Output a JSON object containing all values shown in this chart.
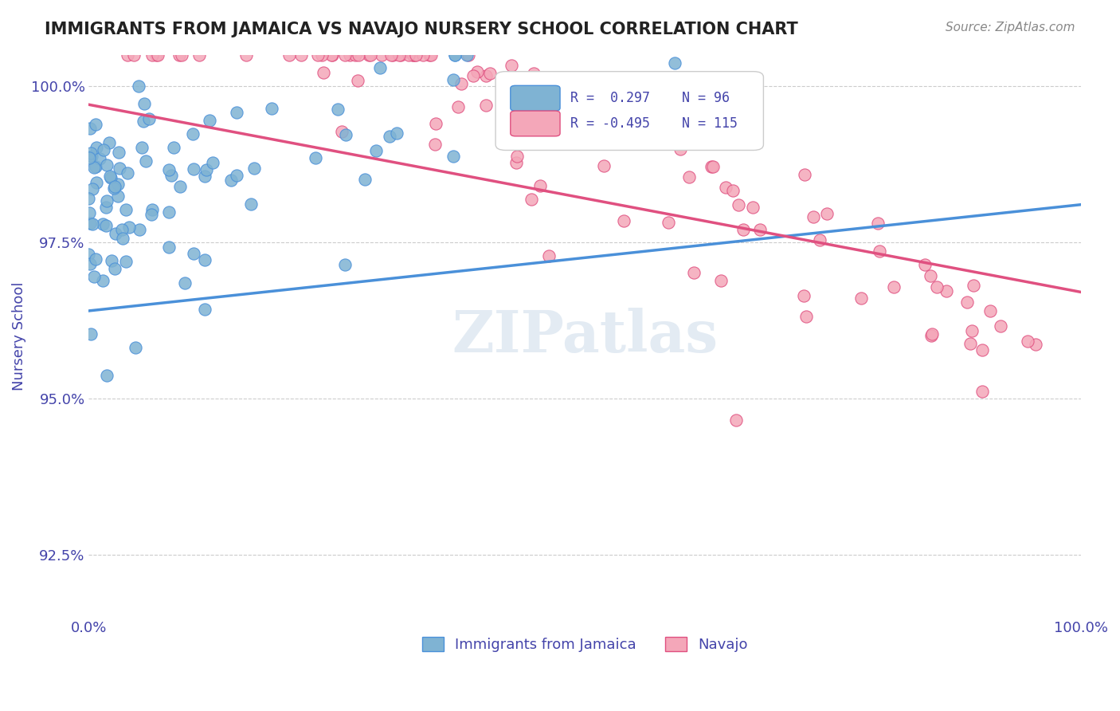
{
  "title": "IMMIGRANTS FROM JAMAICA VS NAVAJO NURSERY SCHOOL CORRELATION CHART",
  "source_text": "Source: ZipAtlas.com",
  "xlabel": "",
  "ylabel": "Nursery School",
  "xlim": [
    0.0,
    1.0
  ],
  "ylim": [
    0.915,
    1.005
  ],
  "yticks": [
    0.925,
    0.95,
    0.975,
    1.0
  ],
  "ytick_labels": [
    "92.5%",
    "95.0%",
    "97.5%",
    "100.0%"
  ],
  "xticks": [
    0.0,
    0.1,
    0.2,
    0.3,
    0.4,
    0.5,
    0.6,
    0.7,
    0.8,
    0.9,
    1.0
  ],
  "xtick_labels": [
    "0.0%",
    "",
    "",
    "",
    "",
    "",
    "",
    "",
    "",
    "",
    "100.0%"
  ],
  "blue_color": "#7FB3D3",
  "pink_color": "#F4A7B9",
  "trend_blue": "#4A90D9",
  "trend_pink": "#E05080",
  "legend_R_blue": "0.297",
  "legend_N_blue": "96",
  "legend_R_pink": "-0.495",
  "legend_N_pink": "115",
  "blue_label": "Immigrants from Jamaica",
  "pink_label": "Navajo",
  "background_color": "#ffffff",
  "grid_color": "#cccccc",
  "title_color": "#222222",
  "axis_label_color": "#4444aa",
  "watermark": "ZIPatlas",
  "blue_seed": 42,
  "pink_seed": 7
}
